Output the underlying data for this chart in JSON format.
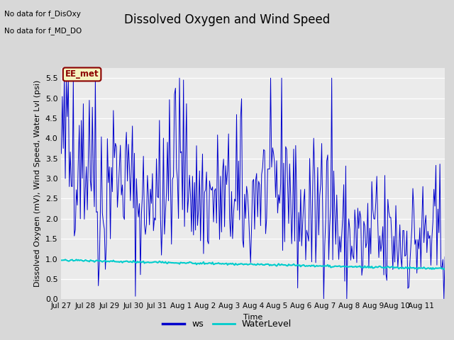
{
  "title": "Dissolved Oxygen and Wind Speed",
  "ylabel": "Dissolved Oxygen (mV), Wind Speed, Water Lvl (psi)",
  "xlabel": "Time",
  "text_no_data_1": "No data for f_DisOxy",
  "text_no_data_2": "No data for f_MD_DO",
  "legend_label_box": "EE_met",
  "legend_ws": "ws",
  "legend_wl": "WaterLevel",
  "ylim": [
    0.0,
    5.75
  ],
  "yticks": [
    0.0,
    0.5,
    1.0,
    1.5,
    2.0,
    2.5,
    3.0,
    3.5,
    4.0,
    4.5,
    5.0,
    5.5
  ],
  "xtick_labels": [
    "Jul 27",
    "Jul 28",
    "Jul 29",
    "Jul 30",
    "Jul 31",
    "Aug 1",
    "Aug 2",
    "Aug 3",
    "Aug 4",
    "Aug 5",
    "Aug 6",
    "Aug 7",
    "Aug 8",
    "Aug 9",
    "Aug 10",
    "Aug 11"
  ],
  "ws_color": "#0000cc",
  "wl_color": "#00cccc",
  "fig_bg_color": "#d8d8d8",
  "plot_bg_color": "#ebebeb",
  "title_fontsize": 12,
  "axis_fontsize": 8,
  "tick_fontsize": 8
}
